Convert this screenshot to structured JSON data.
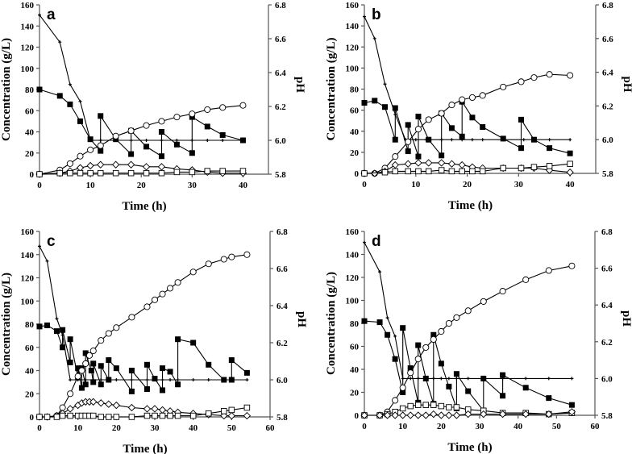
{
  "chart_data": [
    {
      "type": "line",
      "title": "a",
      "xlabel": "Time (h)",
      "ylabel": "Concentration (g/L)",
      "y2label": "pH",
      "xlim": [
        0,
        45
      ],
      "xticks": [
        0,
        10,
        20,
        30,
        40
      ],
      "ylim": [
        0,
        160
      ],
      "y2lim": [
        5.8,
        6.8
      ],
      "series": [
        {
          "marker": "plus",
          "axis": "right",
          "x": [
            0,
            4,
            6,
            8,
            10,
            12,
            15,
            18,
            21,
            24,
            27,
            30,
            33,
            36,
            40
          ],
          "y": [
            6.74,
            6.58,
            6.33,
            6.23,
            6.0,
            6.0,
            6.0,
            6.0,
            6.0,
            6.0,
            6.0,
            6.0,
            6.0,
            6.0,
            6.0
          ]
        },
        {
          "marker": "filled-square",
          "axis": "left",
          "x": [
            0,
            4,
            6,
            8,
            10,
            12,
            12,
            15,
            18,
            18,
            21,
            24,
            24,
            27,
            30,
            30,
            33,
            36,
            40
          ],
          "y": [
            80,
            74,
            66,
            50,
            33,
            22,
            55,
            33,
            19,
            41,
            26,
            17,
            40,
            28,
            20,
            54,
            45,
            37,
            32
          ]
        },
        {
          "marker": "open-circle",
          "axis": "left",
          "x": [
            0,
            4,
            6,
            8,
            10,
            12,
            15,
            18,
            21,
            24,
            27,
            30,
            33,
            36,
            40
          ],
          "y": [
            0,
            4,
            10,
            17,
            23,
            27,
            36,
            41,
            46,
            50,
            54,
            57,
            61,
            63,
            65
          ]
        },
        {
          "marker": "open-diamond",
          "axis": "left",
          "x": [
            0,
            4,
            6,
            8,
            10,
            12,
            15,
            18,
            21,
            24,
            27,
            30,
            33,
            36,
            40
          ],
          "y": [
            0,
            1,
            3,
            6,
            8,
            9,
            9,
            9,
            7,
            7,
            5,
            4,
            2,
            1,
            1
          ]
        },
        {
          "marker": "open-square",
          "axis": "left",
          "x": [
            0,
            4,
            6,
            8,
            10,
            12,
            15,
            18,
            21,
            24,
            27,
            30,
            33,
            36,
            40
          ],
          "y": [
            0,
            1,
            1,
            1,
            1,
            1,
            1,
            1,
            1,
            1,
            2,
            2,
            3,
            3,
            3
          ]
        }
      ]
    },
    {
      "type": "line",
      "title": "b",
      "xlabel": "Time (h)",
      "ylabel": "Concentration (g/L)",
      "y2label": "pH",
      "xlim": [
        0,
        45
      ],
      "xticks": [
        0,
        10,
        20,
        30,
        40
      ],
      "ylim": [
        0,
        160
      ],
      "y2lim": [
        5.8,
        6.8
      ],
      "series": [
        {
          "marker": "plus",
          "axis": "right",
          "x": [
            0,
            2,
            4,
            6,
            8,
            10,
            12,
            15,
            17,
            19,
            21,
            23,
            27,
            31,
            33,
            36,
            40
          ],
          "y": [
            6.73,
            6.6,
            6.33,
            6.15,
            6.0,
            6.0,
            6.0,
            6.0,
            6.0,
            6.0,
            6.0,
            6.0,
            6.0,
            6.0,
            6.0,
            6.0,
            6.0
          ]
        },
        {
          "marker": "filled-square",
          "axis": "left",
          "x": [
            0,
            2,
            4,
            6,
            6,
            8.5,
            8.5,
            10.5,
            10.5,
            12.5,
            15,
            15,
            17,
            19,
            19,
            21,
            23,
            27,
            30.5,
            30.5,
            33,
            36,
            40
          ],
          "y": [
            67,
            69,
            63,
            32,
            62,
            21,
            46,
            16,
            54,
            32,
            17,
            57,
            43,
            35,
            68,
            53,
            44,
            33,
            24,
            51,
            32,
            24,
            19
          ]
        },
        {
          "marker": "open-circle",
          "axis": "left",
          "x": [
            0,
            2,
            4,
            6,
            8.5,
            10.5,
            12.5,
            15,
            17,
            19,
            21,
            23,
            27,
            30.5,
            33,
            36,
            40
          ],
          "y": [
            0,
            0,
            5,
            16,
            30,
            42,
            51,
            57,
            65,
            70,
            72,
            74,
            82,
            87,
            91,
            94,
            93
          ]
        },
        {
          "marker": "open-diamond",
          "axis": "left",
          "x": [
            0,
            2,
            4,
            6,
            8.5,
            10.5,
            12.5,
            15,
            17,
            19,
            21,
            23,
            27,
            30.5,
            33,
            36,
            40
          ],
          "y": [
            0,
            0,
            2,
            8,
            9,
            10,
            10,
            10,
            9,
            8,
            6,
            5,
            5,
            5,
            5,
            3,
            1
          ]
        },
        {
          "marker": "open-square",
          "axis": "left",
          "x": [
            0,
            4,
            6,
            8.5,
            10.5,
            12.5,
            15,
            17,
            19,
            21,
            23,
            27,
            30.5,
            33,
            36,
            40
          ],
          "y": [
            0,
            1,
            2,
            2,
            2,
            2,
            3,
            2,
            2,
            2,
            2,
            5,
            5,
            6,
            7,
            9
          ]
        }
      ]
    },
    {
      "type": "line",
      "title": "c",
      "xlabel": "Time (h)",
      "ylabel": "Concentration (g/L)",
      "y2label": "pH",
      "xlim": [
        0,
        60
      ],
      "xticks": [
        0,
        10,
        20,
        30,
        40,
        50,
        60
      ],
      "ylim": [
        0,
        160
      ],
      "y2lim": [
        5.8,
        6.8
      ],
      "series": [
        {
          "marker": "plus",
          "axis": "right",
          "x": [
            0,
            2,
            4.5,
            6,
            8,
            10,
            12,
            14,
            16,
            18,
            20,
            24,
            28,
            30,
            32,
            34,
            36,
            40,
            44,
            48,
            50,
            54
          ],
          "y": [
            6.72,
            6.64,
            6.33,
            6.24,
            6.0,
            6.0,
            6.0,
            6.0,
            6.0,
            6.0,
            6.0,
            6.0,
            6.0,
            6.0,
            6.0,
            6.0,
            6.0,
            6.0,
            6.0,
            6.0,
            6.0,
            6.0
          ]
        },
        {
          "marker": "filled-square",
          "axis": "left",
          "x": [
            0,
            2,
            4.5,
            6,
            6,
            8,
            8,
            10,
            10,
            11,
            11,
            12,
            12,
            13.5,
            14,
            14,
            16,
            16,
            18,
            18,
            20,
            24,
            24,
            28,
            28,
            30,
            32,
            32,
            34,
            36,
            36,
            40,
            44,
            48,
            50,
            50,
            54
          ],
          "y": [
            78,
            79,
            74,
            60,
            75,
            47,
            67,
            34,
            42,
            25,
            42,
            28,
            55,
            40,
            30,
            46,
            28,
            44,
            32,
            49,
            42,
            22,
            40,
            24,
            45,
            33,
            23,
            42,
            39,
            28,
            67,
            64,
            45,
            32,
            32,
            49,
            38
          ]
        },
        {
          "marker": "open-circle",
          "axis": "left",
          "x": [
            0,
            2,
            4.5,
            6,
            8,
            10,
            11,
            12,
            13,
            14,
            16,
            18,
            20,
            24,
            28,
            30,
            32,
            34,
            36,
            40,
            44,
            48,
            50,
            54
          ],
          "y": [
            0,
            0,
            1,
            8,
            20,
            35,
            40,
            46,
            53,
            57,
            66,
            72,
            77,
            86,
            95,
            101,
            106,
            111,
            116,
            125,
            132,
            136,
            138,
            140
          ]
        },
        {
          "marker": "open-diamond",
          "axis": "left",
          "x": [
            0,
            2,
            4.5,
            6,
            8,
            10,
            11,
            12,
            13,
            14,
            16,
            18,
            20,
            24,
            28,
            30,
            32,
            34,
            36,
            40,
            44,
            48,
            50,
            54
          ],
          "y": [
            0,
            0,
            1,
            3,
            7,
            10,
            12,
            13,
            13,
            13,
            12,
            11,
            10,
            8,
            7,
            7,
            6,
            5,
            4,
            3,
            2,
            1,
            1,
            1
          ]
        },
        {
          "marker": "open-square",
          "axis": "left",
          "x": [
            0,
            2,
            4.5,
            6,
            8,
            10,
            11,
            12,
            13,
            14,
            16,
            18,
            20,
            24,
            28,
            30,
            32,
            34,
            36,
            40,
            44,
            48,
            50,
            54
          ],
          "y": [
            0,
            0,
            0,
            1,
            1,
            1,
            1,
            1,
            1,
            1,
            0,
            0,
            0,
            0,
            1,
            1,
            1,
            1,
            1,
            1,
            3,
            5,
            6,
            8
          ]
        }
      ]
    },
    {
      "type": "line",
      "title": "d",
      "xlabel": "Time (h)",
      "ylabel": "Concentration (g/L)",
      "y2label": "pH",
      "xlim": [
        0,
        60
      ],
      "xticks": [
        0,
        10,
        20,
        30,
        40,
        50,
        60
      ],
      "ylim": [
        0,
        160
      ],
      "y2lim": [
        5.8,
        6.8
      ],
      "series": [
        {
          "marker": "plus",
          "axis": "right",
          "x": [
            0,
            4,
            6,
            8,
            10,
            12,
            14,
            16,
            18,
            20,
            22,
            24,
            27,
            31,
            36,
            42,
            48,
            54
          ],
          "y": [
            6.74,
            6.58,
            6.33,
            6.23,
            6.0,
            6.0,
            6.0,
            6.0,
            6.0,
            6.0,
            6.0,
            6.0,
            6.0,
            6.0,
            6.0,
            6.0,
            6.0,
            6.0
          ]
        },
        {
          "marker": "filled-square",
          "axis": "left",
          "x": [
            0,
            4,
            6,
            8,
            10,
            10,
            12,
            14,
            14,
            16,
            18,
            18,
            20,
            22,
            24,
            24,
            27,
            31,
            31,
            36,
            36,
            42,
            48,
            54
          ],
          "y": [
            82,
            81,
            70,
            49,
            20,
            76,
            41,
            11,
            61,
            32,
            10,
            70,
            45,
            25,
            6,
            36,
            21,
            4,
            32,
            17,
            35,
            24,
            15,
            9
          ]
        },
        {
          "marker": "open-circle",
          "axis": "left",
          "x": [
            0,
            4,
            6,
            8,
            10,
            12,
            14,
            16,
            18,
            20,
            22,
            24,
            27,
            31,
            36,
            42,
            48,
            54
          ],
          "y": [
            0,
            0,
            3,
            13,
            24,
            37,
            49,
            59,
            66,
            73,
            80,
            85,
            91,
            99,
            108,
            118,
            126,
            130
          ]
        },
        {
          "marker": "open-square",
          "axis": "left",
          "x": [
            0,
            4,
            6,
            8,
            10,
            12,
            14,
            16,
            18,
            20,
            22,
            24,
            27,
            31,
            36,
            42,
            48,
            54
          ],
          "y": [
            0,
            0,
            1,
            3,
            6,
            8,
            9,
            9,
            9,
            8,
            7,
            7,
            5,
            4,
            2,
            2,
            1,
            2
          ]
        },
        {
          "marker": "open-diamond",
          "axis": "left",
          "x": [
            0,
            4,
            6,
            8,
            10,
            12,
            14,
            16,
            18,
            20,
            22,
            24,
            27,
            31,
            36,
            42,
            48,
            54
          ],
          "y": [
            0,
            0,
            0,
            0,
            0,
            0,
            0,
            0,
            1,
            0,
            0,
            0,
            1,
            1,
            1,
            1,
            1,
            3
          ]
        }
      ]
    }
  ]
}
